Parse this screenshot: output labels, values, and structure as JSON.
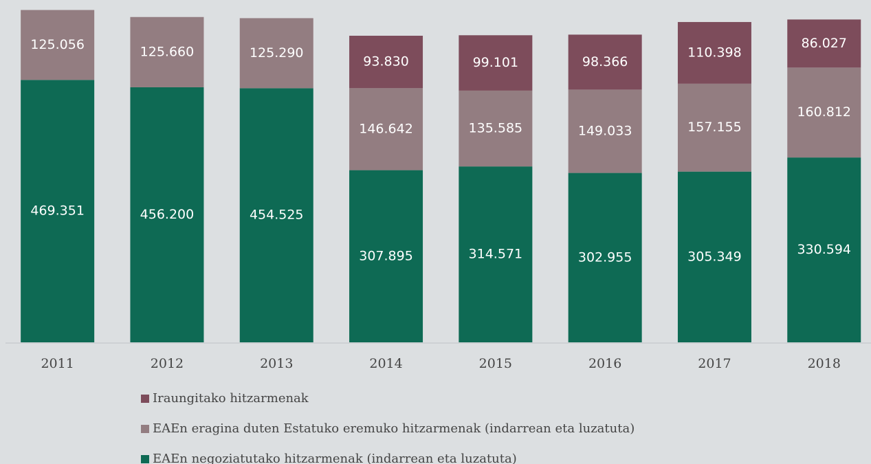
{
  "chart_data": {
    "type": "stacked_bar",
    "categories": [
      "2011",
      "2012",
      "2013",
      "2014",
      "2015",
      "2016",
      "2017",
      "2018"
    ],
    "series": [
      {
        "name": "EAEn negoziatutako hitzarmenak (indarrean eta luzatuta)",
        "color": "#0e6a54",
        "values": [
          469351,
          456200,
          454525,
          307895,
          314571,
          302955,
          305349,
          330594
        ],
        "value_labels": [
          "469.351",
          "456.200",
          "454.525",
          "307.895",
          "314.571",
          "302.955",
          "305.349",
          "330.594"
        ]
      },
      {
        "name": "EAEn eragina duten Estatuko eremuko hitzarmenak (indarrean eta luzatuta)",
        "color": "#937d81",
        "values": [
          125056,
          125660,
          125290,
          146642,
          135585,
          149033,
          157155,
          160812
        ],
        "value_labels": [
          "125.056",
          "125.660",
          "125.290",
          "146.642",
          "135.585",
          "149.033",
          "157.155",
          "160.812"
        ]
      },
      {
        "name": "Iraungitako hitzarmenak",
        "color": "#7d4c5b",
        "values": [
          null,
          null,
          null,
          93830,
          99101,
          98366,
          110398,
          86027
        ],
        "value_labels": [
          null,
          null,
          null,
          "93.830",
          "99.101",
          "98.366",
          "110.398",
          "86.027"
        ]
      }
    ],
    "ylim": [
      0,
      600000
    ]
  }
}
